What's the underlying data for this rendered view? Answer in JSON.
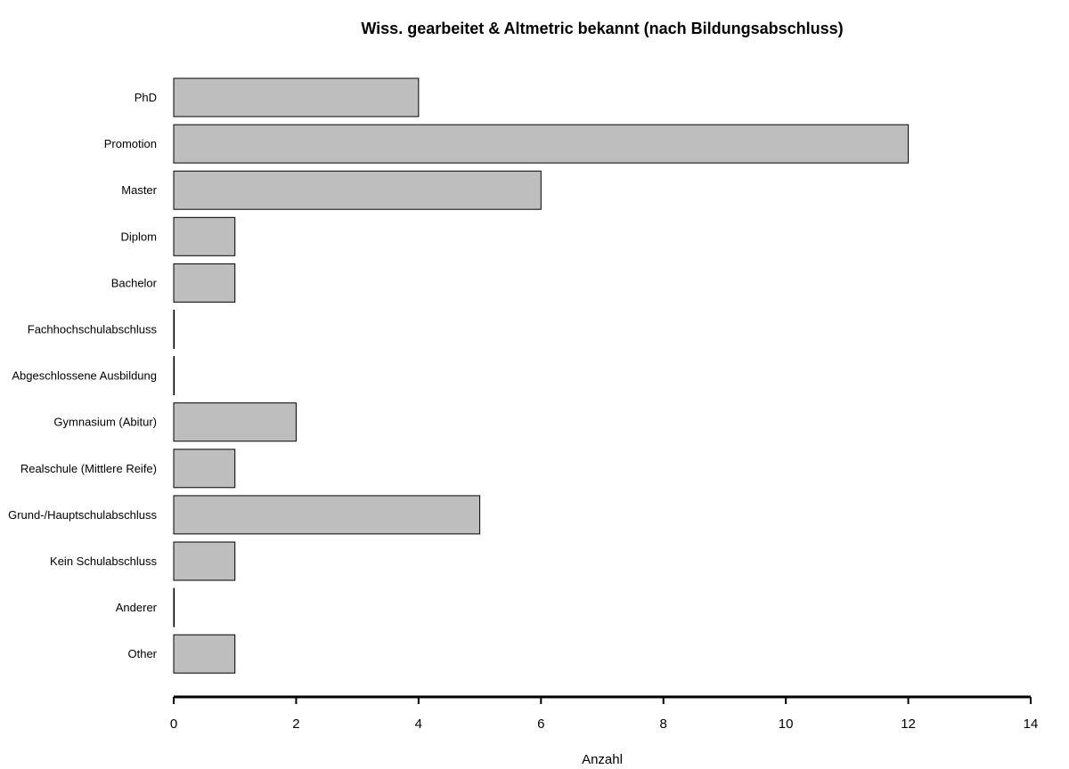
{
  "chart_data": {
    "type": "bar",
    "orientation": "horizontal",
    "title": "Wiss. gearbeitet & Altmetric bekannt (nach Bildungsabschluss)",
    "xlabel": "Anzahl",
    "ylabel": "",
    "categories": [
      "PhD",
      "Promotion",
      "Master",
      "Diplom",
      "Bachelor",
      "Fachhochschulabschluss",
      "Abgeschlossene Ausbildung",
      "Gymnasium (Abitur)",
      "Realschule (Mittlere Reife)",
      "Grund-/Hauptschulabschluss",
      "Kein Schulabschluss",
      "Anderer",
      "Other"
    ],
    "values": [
      4,
      12,
      6,
      1,
      1,
      0,
      0,
      2,
      1,
      5,
      1,
      0,
      1
    ],
    "xlim": [
      0,
      14
    ],
    "xticks": [
      0,
      2,
      4,
      6,
      8,
      10,
      12,
      14
    ],
    "bar_color": "#bebebe",
    "grid": false
  }
}
